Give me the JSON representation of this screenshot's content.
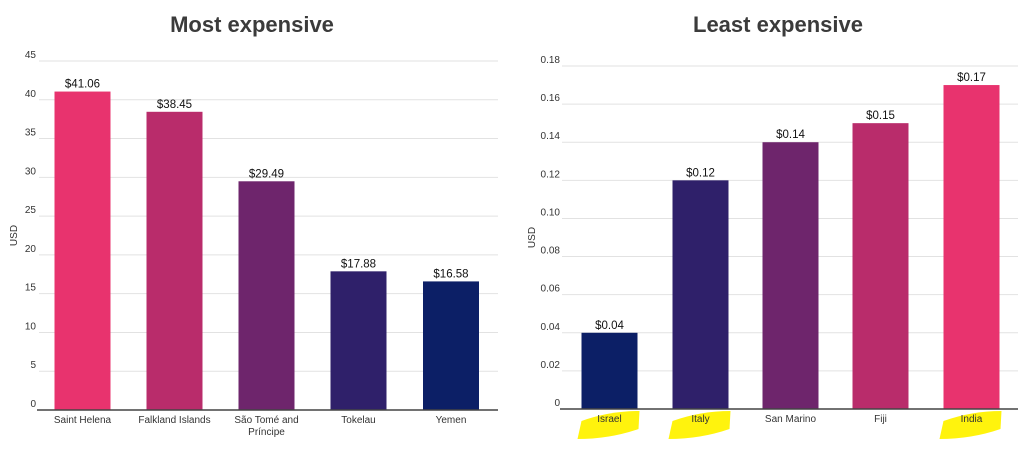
{
  "chart_data": [
    {
      "type": "bar",
      "title": "Most expensive",
      "xlabel": "",
      "ylabel": "USD",
      "ylim": [
        0,
        45
      ],
      "ticks": [
        0,
        5,
        10,
        15,
        20,
        25,
        30,
        35,
        40,
        45
      ],
      "tick_labels": [
        "0",
        "5",
        "10",
        "15",
        "20",
        "25",
        "30",
        "35",
        "40",
        "45"
      ],
      "grid": true,
      "categories": [
        [
          "Saint Helena"
        ],
        [
          "Falkland Islands"
        ],
        [
          "São Tomé and",
          "Príncipe"
        ],
        [
          "Tokelau"
        ],
        [
          "Yemen"
        ]
      ],
      "values": [
        41.06,
        38.45,
        29.49,
        17.88,
        16.58
      ],
      "value_labels": [
        "$41.06",
        "$38.45",
        "$29.49",
        "$17.88",
        "$16.58"
      ],
      "colors": [
        "#e8336e",
        "#b92c6b",
        "#6e256c",
        "#2f206a",
        "#0c1f66"
      ],
      "highlight": [
        false,
        false,
        false,
        false,
        false
      ]
    },
    {
      "type": "bar",
      "title": "Least expensive",
      "xlabel": "",
      "ylabel": "USD",
      "ylim": [
        0,
        0.18
      ],
      "ticks": [
        0,
        0.02,
        0.04,
        0.06,
        0.08,
        0.1,
        0.12,
        0.14,
        0.16,
        0.18
      ],
      "tick_labels": [
        "0",
        "0.02",
        "0.04",
        "0.06",
        "0.08",
        "0.10",
        "0.12",
        "0.14",
        "0.16",
        "0.18"
      ],
      "grid": true,
      "categories": [
        [
          "Israel"
        ],
        [
          "Italy"
        ],
        [
          "San Marino"
        ],
        [
          "Fiji"
        ],
        [
          "India"
        ]
      ],
      "values": [
        0.04,
        0.12,
        0.14,
        0.15,
        0.17
      ],
      "value_labels": [
        "$0.04",
        "$0.12",
        "$0.14",
        "$0.15",
        "$0.17"
      ],
      "colors": [
        "#0c1f66",
        "#2f206a",
        "#6e256c",
        "#b92c6b",
        "#e8336e"
      ],
      "highlight": [
        true,
        true,
        false,
        false,
        true
      ]
    }
  ],
  "highlight_color": "#fff200"
}
